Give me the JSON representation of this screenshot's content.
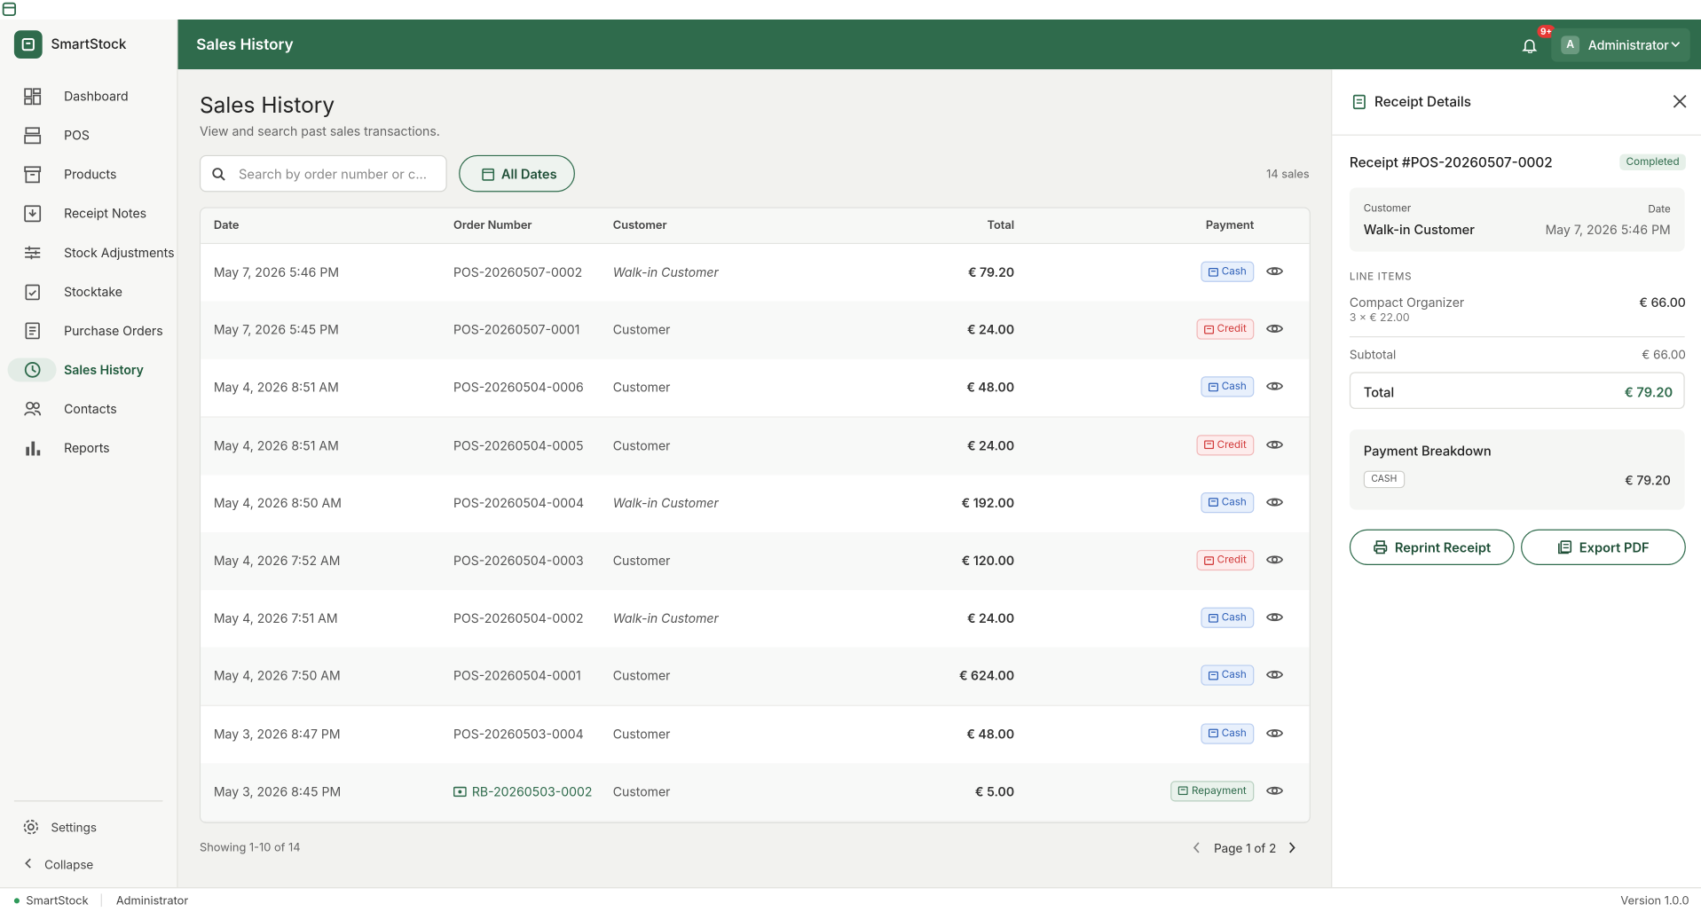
{
  "app": {
    "name": "SmartStock"
  },
  "nav": [
    "Dashboard",
    "POS",
    "Products",
    "Receipt Notes",
    "Stock Adjustments",
    "Stocktake",
    "Purchase Orders",
    "Sales History",
    "Contacts",
    "Reports"
  ],
  "nav_footer": [
    "Settings",
    "Collapse"
  ],
  "header": {
    "title": "Sales History",
    "notifications": "9+",
    "user_initial": "A",
    "user": "Administrator"
  },
  "page": {
    "title": "Sales History",
    "subtitle": "View and search past sales transactions.",
    "search_placeholder": "Search by order number or c...",
    "date_filter": "All Dates",
    "count": "14 sales"
  },
  "table": {
    "columns": [
      "Date",
      "Order Number",
      "Customer",
      "Total",
      "Payment"
    ],
    "rows": [
      [
        "May 7, 2026 5:46 PM",
        "POS-20260507-0002",
        "Walk-in Customer",
        "€ 79.20",
        "Cash"
      ],
      [
        "May 7, 2026 5:45 PM",
        "POS-20260507-0001",
        "Customer",
        "€ 24.00",
        "Credit"
      ],
      [
        "May 4, 2026 8:51 AM",
        "POS-20260504-0006",
        "Customer",
        "€ 48.00",
        "Cash"
      ],
      [
        "May 4, 2026 8:51 AM",
        "POS-20260504-0005",
        "Customer",
        "€ 24.00",
        "Credit"
      ],
      [
        "May 4, 2026 8:50 AM",
        "POS-20260504-0004",
        "Walk-in Customer",
        "€ 192.00",
        "Cash"
      ],
      [
        "May 4, 2026 7:52 AM",
        "POS-20260504-0003",
        "Customer",
        "€ 120.00",
        "Credit"
      ],
      [
        "May 4, 2026 7:51 AM",
        "POS-20260504-0002",
        "Walk-in Customer",
        "€ 24.00",
        "Cash"
      ],
      [
        "May 4, 2026 7:50 AM",
        "POS-20260504-0001",
        "Customer",
        "€ 624.00",
        "Cash"
      ],
      [
        "May 3, 2026 8:47 PM",
        "POS-20260503-0004",
        "Customer",
        "€ 48.00",
        "Cash"
      ],
      [
        "May 3, 2026 8:45 PM",
        "RB-20260503-0002",
        "Customer",
        "€ 5.00",
        "Repayment"
      ]
    ]
  },
  "pagination": {
    "showing": "Showing 1-10 of 14",
    "page": "Page 1 of 2"
  },
  "receipt": {
    "title": "Receipt Details",
    "number": "Receipt #POS-20260507-0002",
    "status": "Completed",
    "customer_label": "Customer",
    "customer": "Walk-in Customer",
    "date_label": "Date",
    "date": "May 7, 2026 5:46 PM",
    "line_items_label": "LINE ITEMS",
    "items": [
      {
        "name": "Compact Organizer",
        "detail": "3 × € 22.00",
        "amount": "€ 66.00"
      }
    ],
    "subtotal_label": "Subtotal",
    "subtotal": "€ 66.00",
    "total_label": "Total",
    "total": "€ 79.20",
    "breakdown_title": "Payment Breakdown",
    "method": "CASH",
    "method_amount": "€ 79.20",
    "buttons": [
      "Reprint Receipt",
      "Export PDF"
    ]
  },
  "status_bar": {
    "app": "SmartStock",
    "user": "Administrator",
    "version": "Version 1.0.0"
  }
}
